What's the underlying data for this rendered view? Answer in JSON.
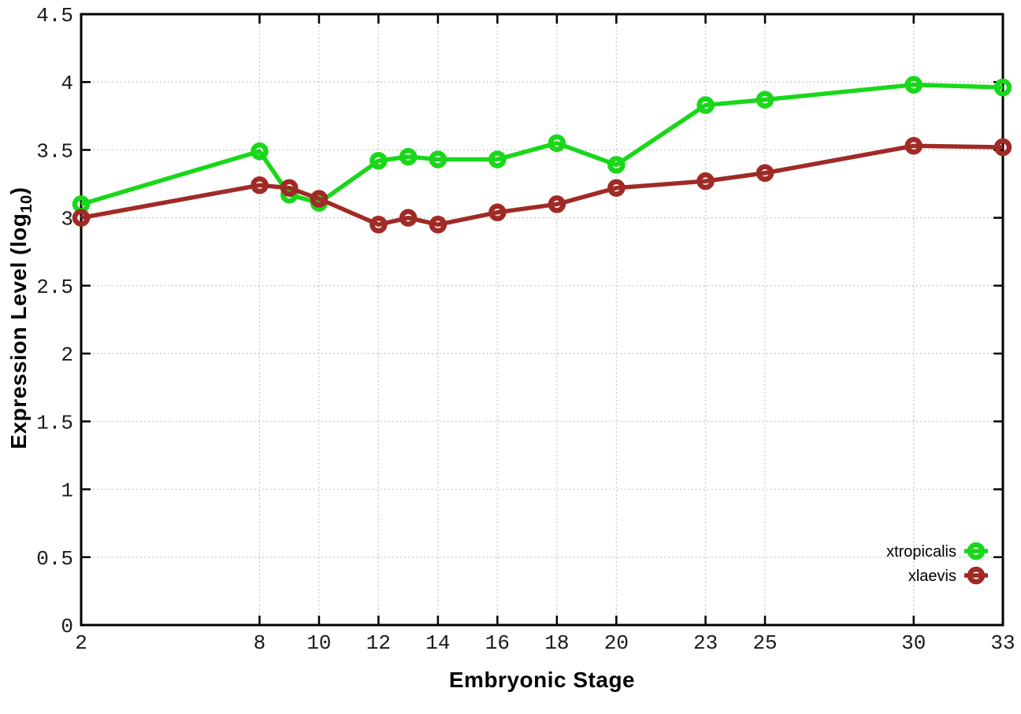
{
  "chart_data": {
    "type": "line",
    "title": "",
    "xlabel": "Embryonic Stage",
    "ylabel": "Expression Level (log10)",
    "ylabel_parts": {
      "main": "Expression Level (log",
      "sub": "10",
      "close": ")"
    },
    "x": [
      2,
      8,
      9,
      10,
      12,
      13,
      14,
      16,
      18,
      20,
      23,
      25,
      30,
      33
    ],
    "series": [
      {
        "name": "xtropicalis",
        "color": "#19d719",
        "values": [
          3.1,
          3.49,
          3.17,
          3.11,
          3.42,
          3.45,
          3.43,
          3.43,
          3.55,
          3.39,
          3.83,
          3.87,
          3.98,
          3.96
        ]
      },
      {
        "name": "xlaevis",
        "color": "#a02b26",
        "values": [
          3.0,
          3.24,
          3.22,
          3.14,
          2.95,
          3.0,
          2.95,
          3.04,
          3.1,
          3.22,
          3.27,
          3.33,
          3.53,
          3.52
        ]
      }
    ],
    "xticks": [
      2,
      8,
      10,
      12,
      14,
      16,
      18,
      20,
      23,
      25,
      30,
      33
    ],
    "xtick_labels": [
      "2",
      "8",
      "10",
      "12",
      "14",
      "16",
      "18",
      "20",
      "23",
      "25",
      "30",
      "33"
    ],
    "yticks": [
      0,
      0.5,
      1,
      1.5,
      2,
      2.5,
      3,
      3.5,
      4,
      4.5
    ],
    "ytick_labels": [
      "0",
      "0.5",
      "1",
      "1.5",
      "2",
      "2.5",
      "3",
      "3.5",
      "4",
      "4.5"
    ],
    "xlim": [
      2,
      33
    ],
    "ylim": [
      0,
      4.5
    ],
    "grid": true,
    "grid_style": "dotted",
    "legend_position": "bottom-right",
    "colors": {
      "background": "#ffffff",
      "axis": "#000000",
      "grid": "#b5b5b5"
    }
  }
}
